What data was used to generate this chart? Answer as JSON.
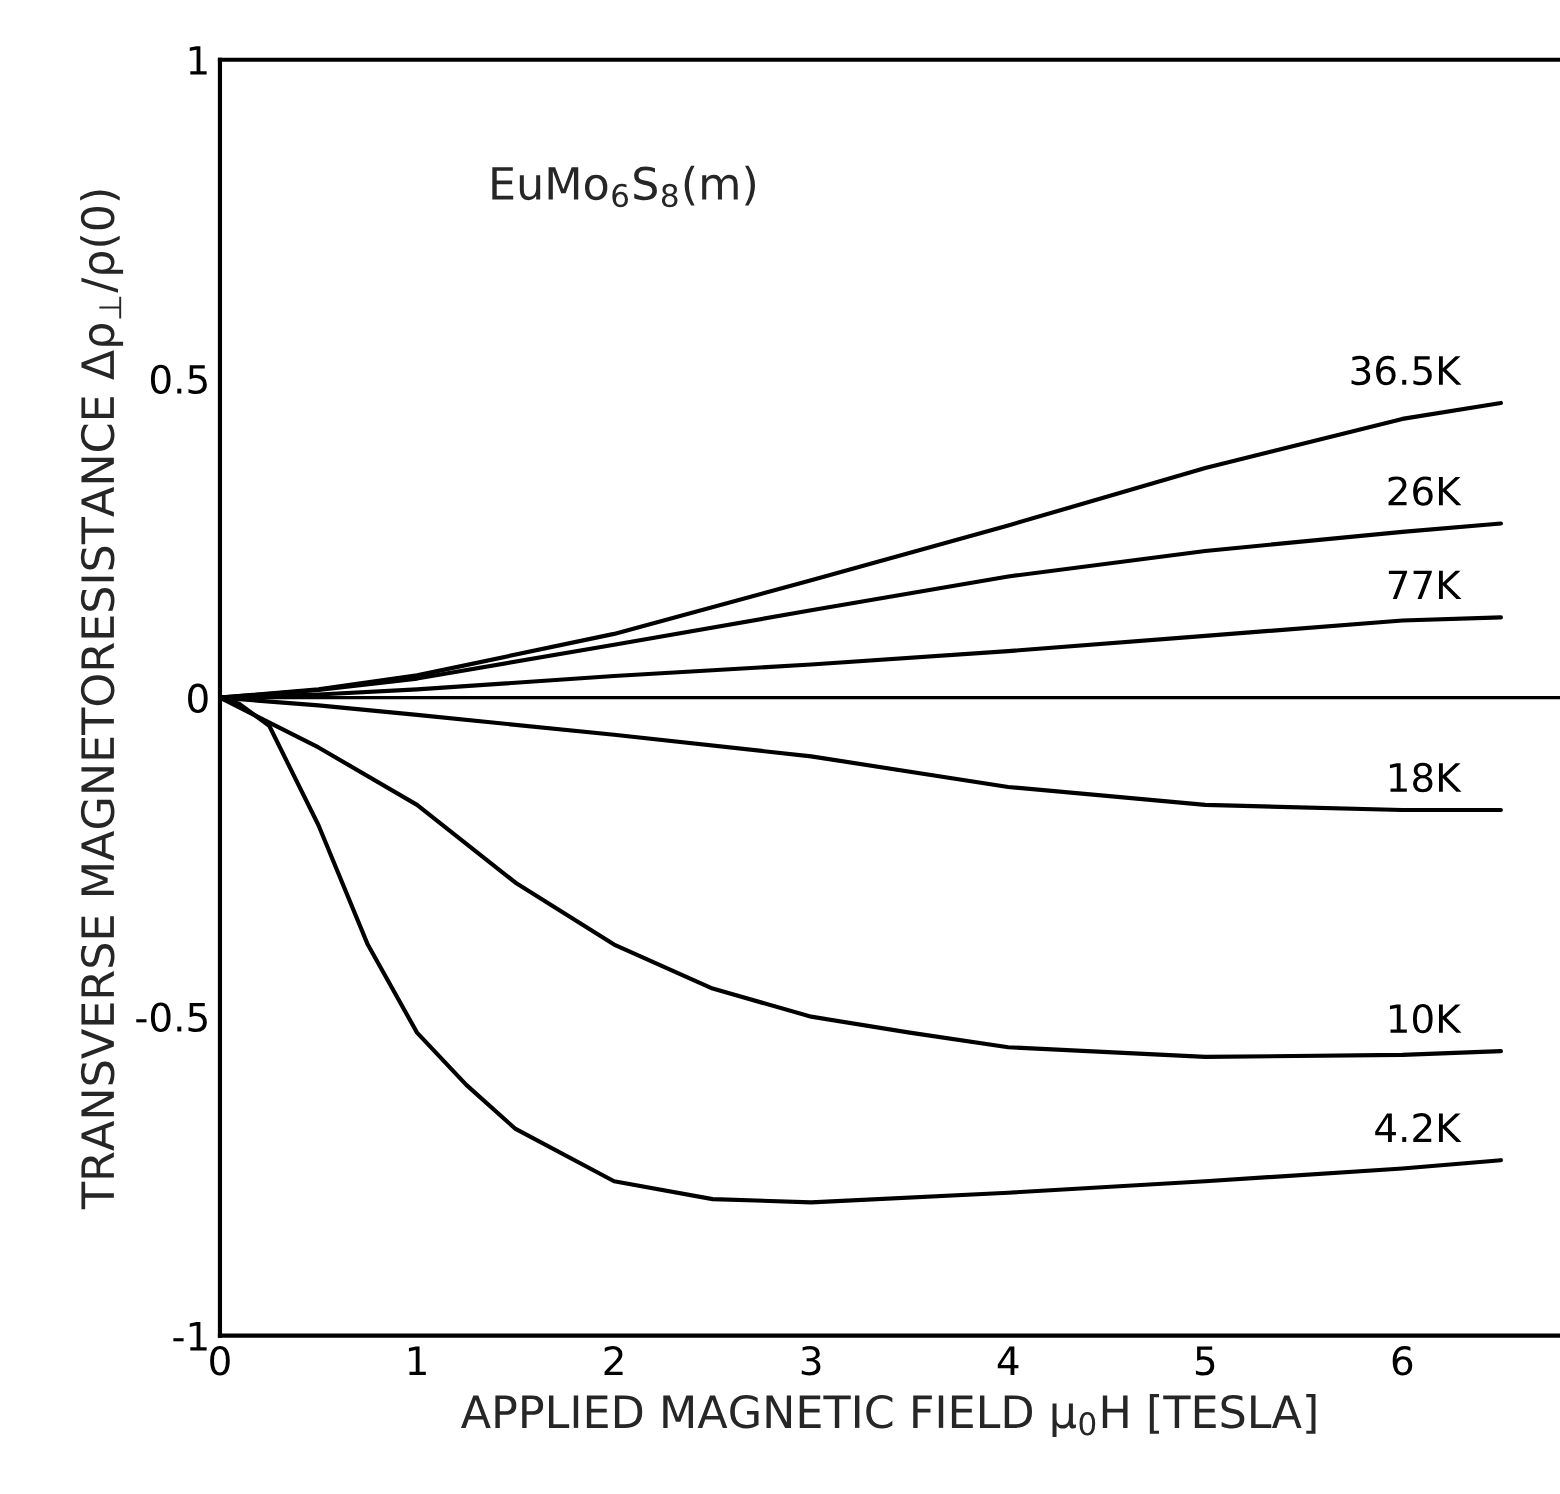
{
  "chart_data": {
    "type": "line",
    "xlabel": "APPLIED MAGNETIC FIELD μ$_{0}$H [TESLA]",
    "ylabel": "TRANSVERSE MAGNETORESISTANCE Δρ$_{⊥}$/ρ(0)",
    "annotations": [
      "EuMo$_{6}$S$_{8}$(m)"
    ],
    "x": [
      0,
      0.5,
      1,
      2,
      3,
      4,
      5,
      6,
      6.5
    ],
    "series": [
      {
        "name": "36.5K",
        "color": "#000000",
        "values": [
          0,
          0.013,
          0.035,
          0.1,
          0.184,
          0.27,
          0.36,
          0.437,
          0.462
        ]
      },
      {
        "name": "26K",
        "color": "#000000",
        "values": [
          0,
          0.012,
          0.03,
          0.083,
          0.137,
          0.19,
          0.23,
          0.26,
          0.273
        ]
      },
      {
        "name": "77K",
        "color": "#000000",
        "values": [
          0,
          0.005,
          0.013,
          0.034,
          0.052,
          0.073,
          0.097,
          0.121,
          0.126
        ]
      },
      {
        "name": "18K",
        "color": "#000000",
        "values": [
          0,
          -0.012,
          -0.027,
          -0.058,
          -0.092,
          -0.14,
          -0.168,
          -0.176,
          -0.176
        ]
      },
      {
        "name": "10K",
        "color": "#000000",
        "x": [
          0,
          0.5,
          1,
          1.5,
          2,
          2.5,
          3,
          3.5,
          4,
          5,
          6,
          6.5
        ],
        "values": [
          0,
          -0.078,
          -0.168,
          -0.29,
          -0.387,
          -0.456,
          -0.5,
          -0.525,
          -0.548,
          -0.563,
          -0.56,
          -0.554
        ]
      },
      {
        "name": "4.2K",
        "color": "#000000",
        "x": [
          0,
          0.1,
          0.25,
          0.5,
          0.75,
          1,
          1.25,
          1.5,
          2,
          2.5,
          3,
          4,
          5,
          6,
          6.5
        ],
        "values": [
          0,
          -0.01,
          -0.044,
          -0.2,
          -0.387,
          -0.525,
          -0.607,
          -0.676,
          -0.758,
          -0.786,
          -0.791,
          -0.776,
          -0.758,
          -0.738,
          -0.725
        ]
      }
    ],
    "ref_lines": [
      {
        "axis": "y",
        "value": 0,
        "color": "#000000"
      }
    ],
    "xlim": [
      0,
      6.8
    ],
    "ylim": [
      -1,
      1
    ],
    "xticks": [
      0,
      1,
      2,
      3,
      4,
      5,
      6
    ],
    "yticks": [
      {
        "value": -1,
        "label": "-1"
      },
      {
        "value": -0.5,
        "label": "-0.5"
      },
      0,
      0.5,
      1
    ],
    "grid": false,
    "legend": false,
    "marker": "none",
    "line_style": "solid"
  }
}
